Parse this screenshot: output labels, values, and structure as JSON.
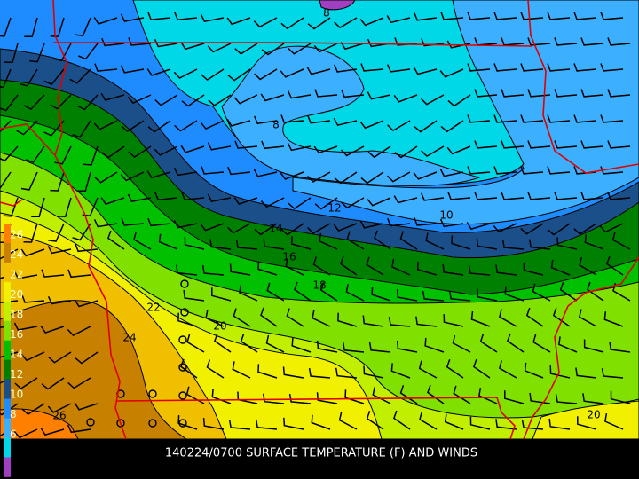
{
  "title": "140224/0700 SURFACE TEMPERATURE (F) AND WINDS",
  "legend": {
    "labels": [
      "26",
      "24",
      "22",
      "20",
      "18",
      "16",
      "14",
      "12",
      "10",
      "8",
      "6"
    ]
  },
  "contour_labels": [
    "8",
    "8",
    "12",
    "10",
    "14",
    "16",
    "18",
    "22",
    "20",
    "24",
    "26",
    "20"
  ]
}
